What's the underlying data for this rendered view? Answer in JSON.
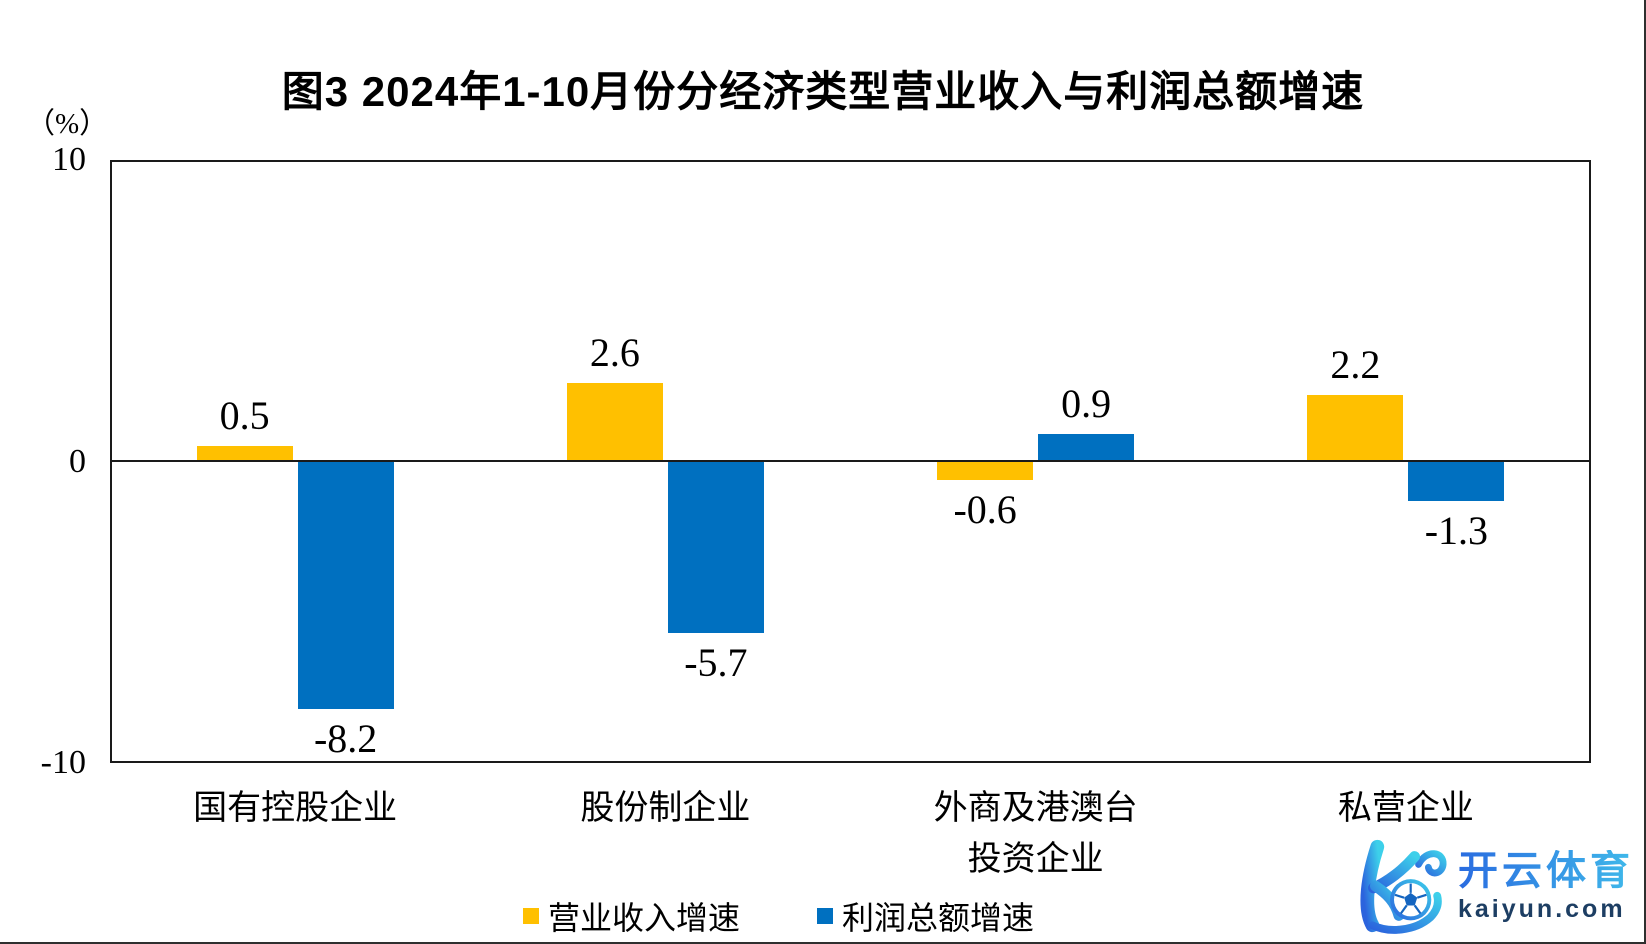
{
  "title": "图3 2024年1-10月份分经济类型营业收入与利润总额增速",
  "chart_data": {
    "type": "bar",
    "title": "图3 2024年1-10月份分经济类型营业收入与利润总额增速",
    "ylabel": "（%）",
    "ylim": [
      -10,
      10
    ],
    "yticks": [
      10,
      0,
      -10
    ],
    "grid": false,
    "legend_position": "bottom",
    "value_labels": true,
    "categories": [
      "国有控股企业",
      "股份制企业",
      "外商及港澳台\n投资企业",
      "私营企业"
    ],
    "series": [
      {
        "name": "营业收入增速",
        "color": "#FFC000",
        "values": [
          0.5,
          2.6,
          -0.6,
          2.2
        ]
      },
      {
        "name": "利润总额增速",
        "color": "#0070C0",
        "values": [
          -8.2,
          -5.7,
          0.9,
          -1.3
        ]
      }
    ]
  },
  "watermark": {
    "brand": "开云体育",
    "domain": "kaiyun.com",
    "logo": "kaiyun-k-soccer-ball-logo"
  }
}
